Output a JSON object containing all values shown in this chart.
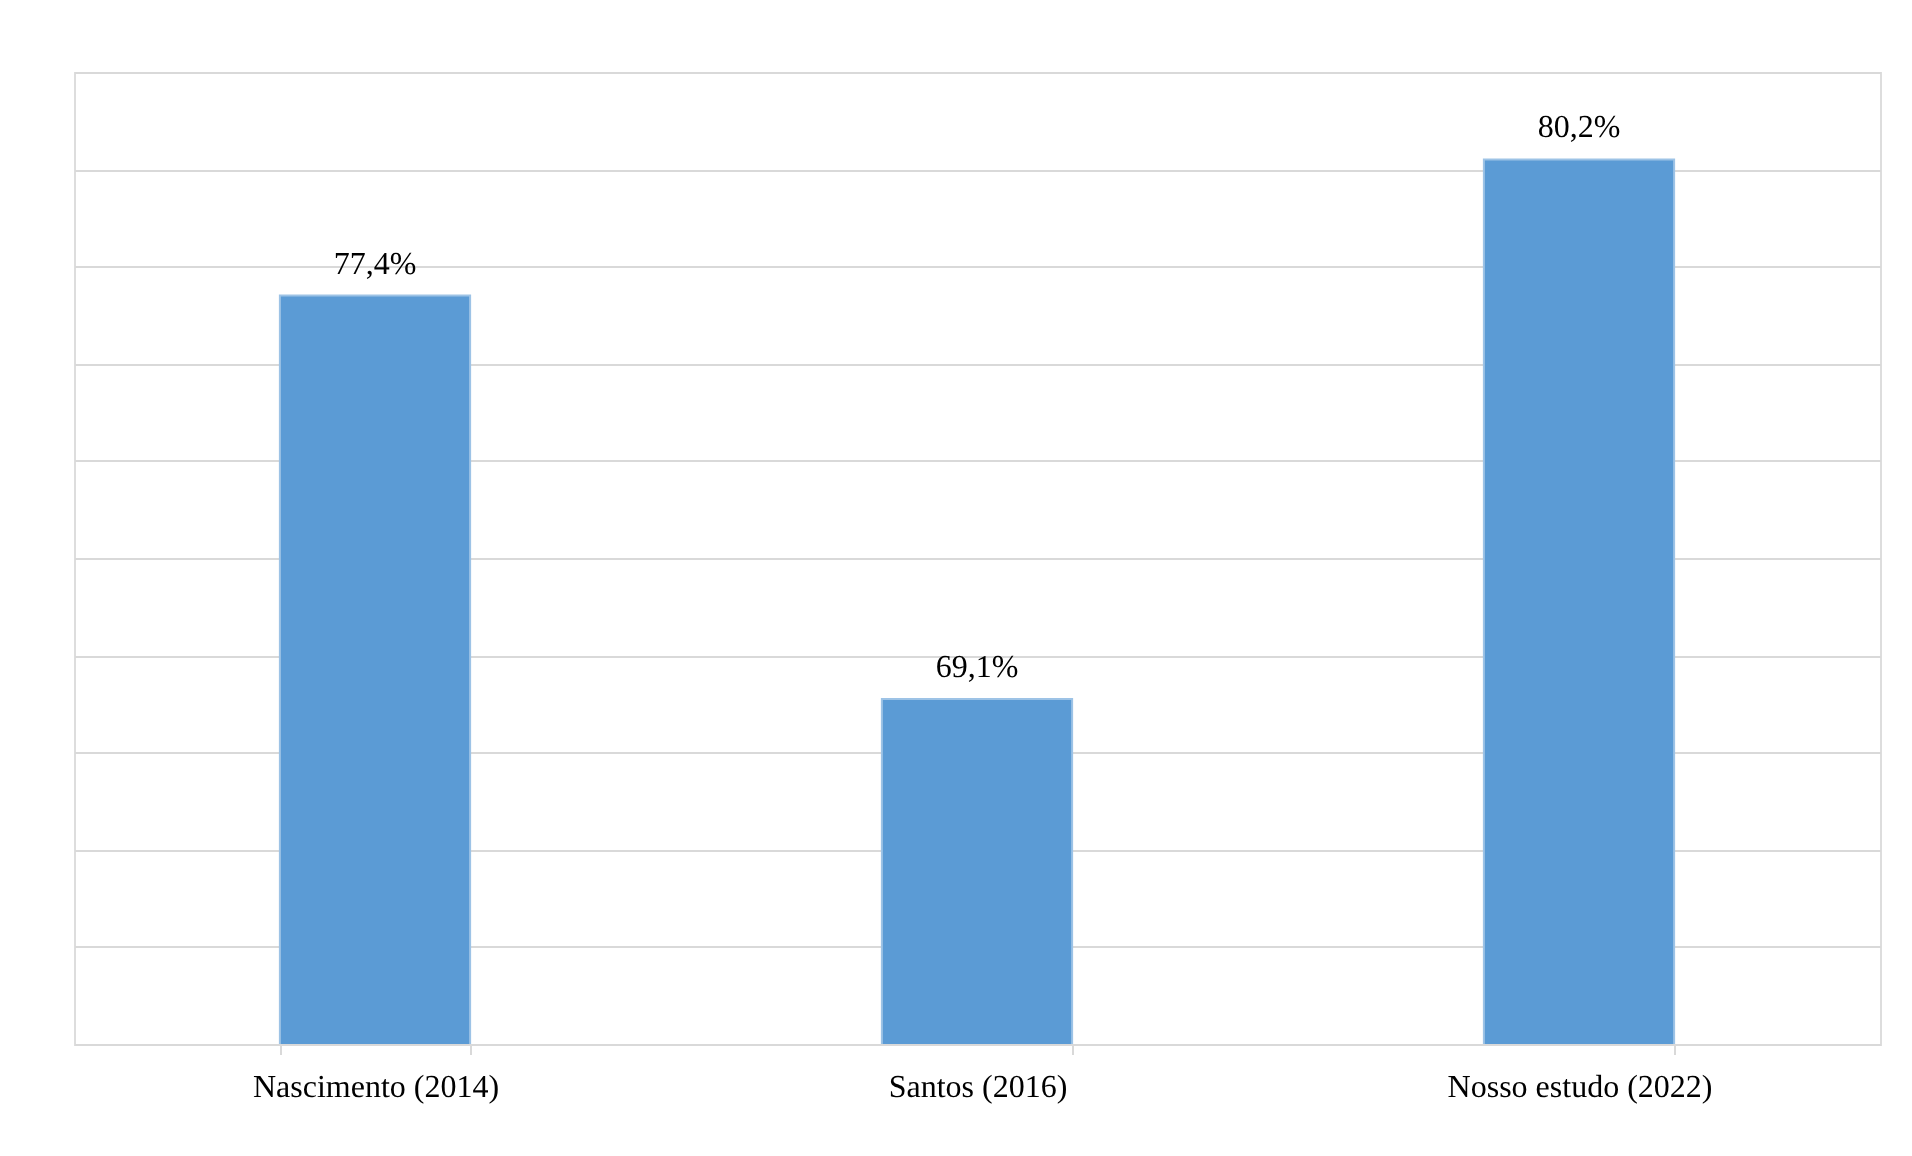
{
  "chart_data": {
    "type": "bar",
    "categories": [
      "Nascimento (2014)",
      "Santos (2016)",
      "Nosso estudo (2022)"
    ],
    "values": [
      77.4,
      69.1,
      80.2
    ],
    "color": "#5b9bd5",
    "value_labels": [
      "77,4%",
      "69,1%",
      "80,2%"
    ],
    "ylim": [
      62,
      82
    ],
    "yticks": [
      {
        "value": 62,
        "label": null
      },
      {
        "value": 64,
        "label": null
      },
      {
        "value": 66,
        "label": null
      },
      {
        "value": 68,
        "label": null
      },
      {
        "value": 70,
        "label": null
      },
      {
        "value": 72,
        "label": null
      },
      {
        "value": 74,
        "label": null
      },
      {
        "value": 76,
        "label": null
      },
      {
        "value": 78,
        "label": null
      },
      {
        "value": 80,
        "label": null
      },
      {
        "value": 82,
        "label": null
      }
    ],
    "grid": "y",
    "tick_labels": "x"
  }
}
